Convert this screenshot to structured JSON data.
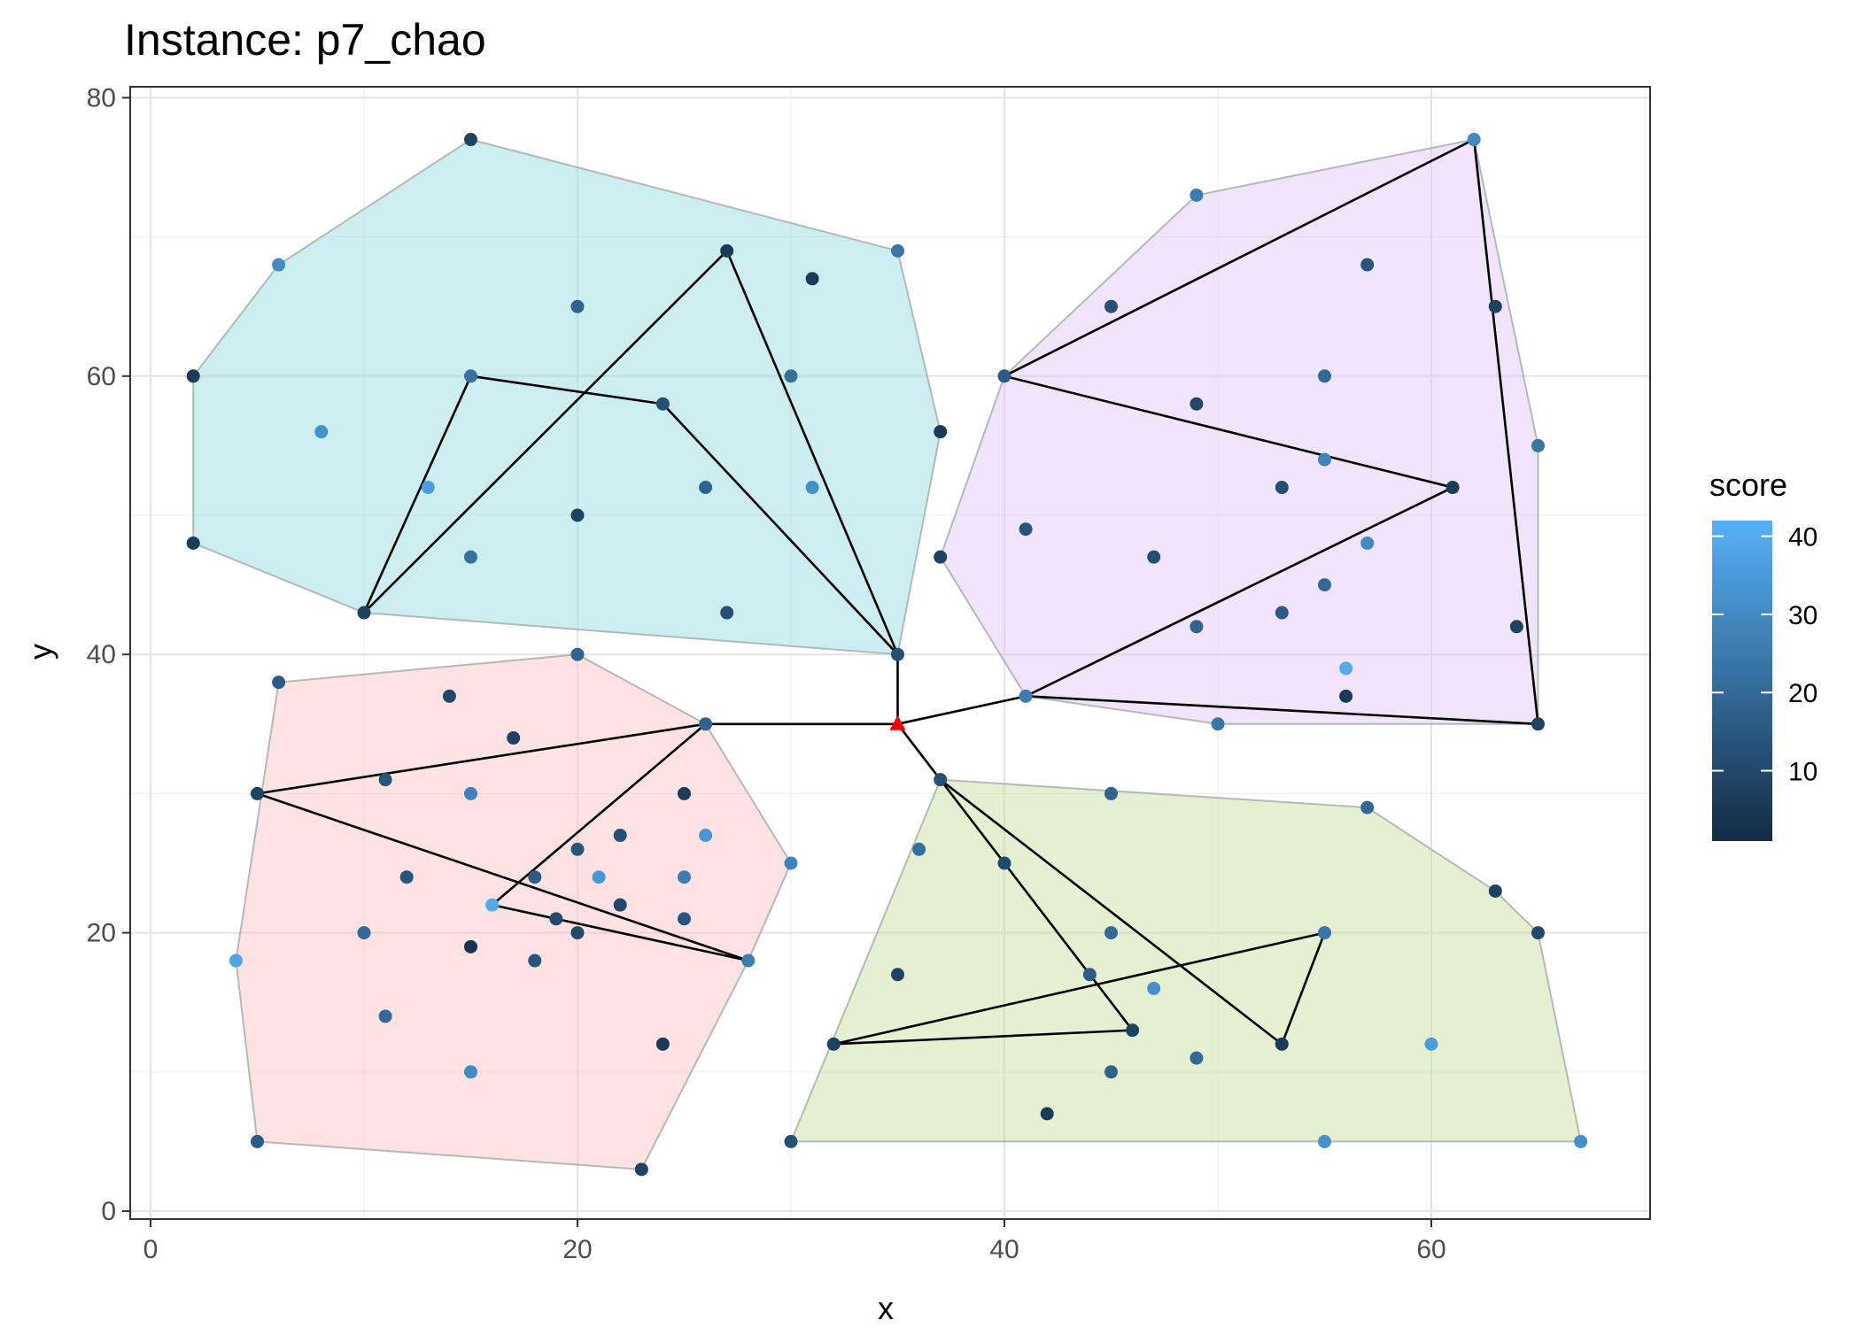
{
  "chart_data": {
    "type": "scatter",
    "title": "Instance: p7_chao",
    "xlabel": "x",
    "ylabel": "y",
    "xlim": [
      -1,
      70
    ],
    "ylim": [
      -1,
      80
    ],
    "x_ticks": [
      0,
      20,
      40,
      60
    ],
    "y_ticks": [
      0,
      20,
      40,
      60,
      80
    ],
    "grid": true,
    "color_scale": {
      "name": "score",
      "low_color": "#132b43",
      "high_color": "#56b1f7",
      "domain": [
        1,
        42
      ],
      "ticks": [
        10,
        20,
        30,
        40
      ],
      "legend_position": "right"
    },
    "depot": {
      "x": 35,
      "y": 35,
      "color": "#ff0000"
    },
    "clusters": [
      {
        "fill": "#8ed9df",
        "hull": [
          [
            2,
            60
          ],
          [
            2,
            48
          ],
          [
            10,
            43
          ],
          [
            35,
            40
          ],
          [
            37,
            56
          ],
          [
            35,
            69
          ],
          [
            15,
            77
          ],
          [
            6,
            68
          ]
        ]
      },
      {
        "fill": "#dcc4f5",
        "hull": [
          [
            37,
            47
          ],
          [
            40,
            60
          ],
          [
            49,
            73
          ],
          [
            62,
            77
          ],
          [
            65,
            55
          ],
          [
            65,
            35
          ],
          [
            50,
            35
          ],
          [
            41,
            37
          ]
        ]
      },
      {
        "fill": "#f8bfbf",
        "hull": [
          [
            4,
            18
          ],
          [
            5,
            5
          ],
          [
            23,
            3
          ],
          [
            28,
            18
          ],
          [
            30,
            25
          ],
          [
            26,
            35
          ],
          [
            20,
            40
          ],
          [
            6,
            38
          ]
        ]
      },
      {
        "fill": "#c5dd98",
        "hull": [
          [
            30,
            5
          ],
          [
            67,
            5
          ],
          [
            65,
            20
          ],
          [
            63,
            23
          ],
          [
            57,
            29
          ],
          [
            37,
            31
          ]
        ]
      }
    ],
    "routes": [
      [
        [
          35,
          35
        ],
        [
          35,
          40
        ],
        [
          27,
          69
        ],
        [
          10,
          43
        ],
        [
          15,
          60
        ],
        [
          24,
          58
        ],
        [
          35,
          40
        ],
        [
          35,
          35
        ]
      ],
      [
        [
          35,
          35
        ],
        [
          41,
          37
        ],
        [
          61,
          52
        ],
        [
          40,
          60
        ],
        [
          62,
          77
        ],
        [
          65,
          35
        ],
        [
          41,
          37
        ],
        [
          35,
          35
        ]
      ],
      [
        [
          35,
          35
        ],
        [
          26,
          35
        ],
        [
          5,
          30
        ],
        [
          28,
          18
        ],
        [
          16,
          22
        ],
        [
          26,
          35
        ],
        [
          35,
          35
        ]
      ],
      [
        [
          35,
          35
        ],
        [
          37,
          31
        ],
        [
          46,
          13
        ],
        [
          32,
          12
        ],
        [
          55,
          20
        ],
        [
          53,
          12
        ],
        [
          37,
          31
        ],
        [
          35,
          35
        ]
      ]
    ],
    "points": [
      {
        "x": 15,
        "y": 77,
        "score": 8
      },
      {
        "x": 6,
        "y": 68,
        "score": 30
      },
      {
        "x": 2,
        "y": 60,
        "score": 6
      },
      {
        "x": 2,
        "y": 48,
        "score": 6
      },
      {
        "x": 8,
        "y": 56,
        "score": 32
      },
      {
        "x": 15,
        "y": 60,
        "score": 22
      },
      {
        "x": 13,
        "y": 52,
        "score": 36
      },
      {
        "x": 15,
        "y": 47,
        "score": 22
      },
      {
        "x": 10,
        "y": 43,
        "score": 8
      },
      {
        "x": 20,
        "y": 65,
        "score": 18
      },
      {
        "x": 20,
        "y": 50,
        "score": 8
      },
      {
        "x": 27,
        "y": 69,
        "score": 6
      },
      {
        "x": 24,
        "y": 58,
        "score": 12
      },
      {
        "x": 26,
        "y": 52,
        "score": 18
      },
      {
        "x": 27,
        "y": 43,
        "score": 12
      },
      {
        "x": 30,
        "y": 60,
        "score": 22
      },
      {
        "x": 31,
        "y": 67,
        "score": 6
      },
      {
        "x": 31,
        "y": 52,
        "score": 32
      },
      {
        "x": 35,
        "y": 69,
        "score": 24
      },
      {
        "x": 37,
        "y": 56,
        "score": 6
      },
      {
        "x": 35,
        "y": 40,
        "score": 12
      },
      {
        "x": 62,
        "y": 77,
        "score": 30
      },
      {
        "x": 49,
        "y": 73,
        "score": 26
      },
      {
        "x": 45,
        "y": 65,
        "score": 12
      },
      {
        "x": 57,
        "y": 68,
        "score": 14
      },
      {
        "x": 63,
        "y": 65,
        "score": 8
      },
      {
        "x": 40,
        "y": 60,
        "score": 16
      },
      {
        "x": 49,
        "y": 58,
        "score": 10
      },
      {
        "x": 55,
        "y": 60,
        "score": 20
      },
      {
        "x": 55,
        "y": 54,
        "score": 28
      },
      {
        "x": 53,
        "y": 52,
        "score": 12
      },
      {
        "x": 61,
        "y": 52,
        "score": 6
      },
      {
        "x": 65,
        "y": 55,
        "score": 24
      },
      {
        "x": 37,
        "y": 47,
        "score": 8
      },
      {
        "x": 41,
        "y": 49,
        "score": 14
      },
      {
        "x": 47,
        "y": 47,
        "score": 12
      },
      {
        "x": 57,
        "y": 48,
        "score": 30
      },
      {
        "x": 55,
        "y": 45,
        "score": 20
      },
      {
        "x": 49,
        "y": 42,
        "score": 18
      },
      {
        "x": 53,
        "y": 43,
        "score": 16
      },
      {
        "x": 64,
        "y": 42,
        "score": 8
      },
      {
        "x": 56,
        "y": 39,
        "score": 40
      },
      {
        "x": 56,
        "y": 37,
        "score": 6
      },
      {
        "x": 41,
        "y": 37,
        "score": 26
      },
      {
        "x": 50,
        "y": 35,
        "score": 24
      },
      {
        "x": 65,
        "y": 35,
        "score": 8
      },
      {
        "x": 6,
        "y": 38,
        "score": 16
      },
      {
        "x": 20,
        "y": 40,
        "score": 18
      },
      {
        "x": 14,
        "y": 37,
        "score": 10
      },
      {
        "x": 17,
        "y": 34,
        "score": 8
      },
      {
        "x": 26,
        "y": 35,
        "score": 18
      },
      {
        "x": 5,
        "y": 30,
        "score": 8
      },
      {
        "x": 11,
        "y": 31,
        "score": 14
      },
      {
        "x": 15,
        "y": 30,
        "score": 28
      },
      {
        "x": 25,
        "y": 30,
        "score": 6
      },
      {
        "x": 26,
        "y": 27,
        "score": 34
      },
      {
        "x": 22,
        "y": 27,
        "score": 12
      },
      {
        "x": 20,
        "y": 26,
        "score": 14
      },
      {
        "x": 30,
        "y": 25,
        "score": 28
      },
      {
        "x": 12,
        "y": 24,
        "score": 14
      },
      {
        "x": 18,
        "y": 24,
        "score": 16
      },
      {
        "x": 21,
        "y": 24,
        "score": 34
      },
      {
        "x": 25,
        "y": 24,
        "score": 26
      },
      {
        "x": 16,
        "y": 22,
        "score": 40
      },
      {
        "x": 22,
        "y": 22,
        "score": 10
      },
      {
        "x": 19,
        "y": 21,
        "score": 10
      },
      {
        "x": 25,
        "y": 21,
        "score": 14
      },
      {
        "x": 10,
        "y": 20,
        "score": 20
      },
      {
        "x": 20,
        "y": 20,
        "score": 10
      },
      {
        "x": 15,
        "y": 19,
        "score": 4
      },
      {
        "x": 4,
        "y": 18,
        "score": 38
      },
      {
        "x": 18,
        "y": 18,
        "score": 14
      },
      {
        "x": 28,
        "y": 18,
        "score": 26
      },
      {
        "x": 11,
        "y": 14,
        "score": 20
      },
      {
        "x": 24,
        "y": 12,
        "score": 6
      },
      {
        "x": 15,
        "y": 10,
        "score": 30
      },
      {
        "x": 5,
        "y": 5,
        "score": 16
      },
      {
        "x": 23,
        "y": 3,
        "score": 8
      },
      {
        "x": 37,
        "y": 31,
        "score": 12
      },
      {
        "x": 45,
        "y": 30,
        "score": 18
      },
      {
        "x": 57,
        "y": 29,
        "score": 20
      },
      {
        "x": 36,
        "y": 26,
        "score": 22
      },
      {
        "x": 40,
        "y": 25,
        "score": 10
      },
      {
        "x": 63,
        "y": 23,
        "score": 8
      },
      {
        "x": 45,
        "y": 20,
        "score": 20
      },
      {
        "x": 55,
        "y": 20,
        "score": 24
      },
      {
        "x": 65,
        "y": 20,
        "score": 10
      },
      {
        "x": 35,
        "y": 17,
        "score": 8
      },
      {
        "x": 44,
        "y": 17,
        "score": 16
      },
      {
        "x": 47,
        "y": 16,
        "score": 32
      },
      {
        "x": 46,
        "y": 13,
        "score": 8
      },
      {
        "x": 32,
        "y": 12,
        "score": 8
      },
      {
        "x": 53,
        "y": 12,
        "score": 6
      },
      {
        "x": 60,
        "y": 12,
        "score": 36
      },
      {
        "x": 49,
        "y": 11,
        "score": 20
      },
      {
        "x": 45,
        "y": 10,
        "score": 18
      },
      {
        "x": 42,
        "y": 7,
        "score": 6
      },
      {
        "x": 30,
        "y": 5,
        "score": 12
      },
      {
        "x": 55,
        "y": 5,
        "score": 32
      },
      {
        "x": 67,
        "y": 5,
        "score": 32
      }
    ]
  }
}
